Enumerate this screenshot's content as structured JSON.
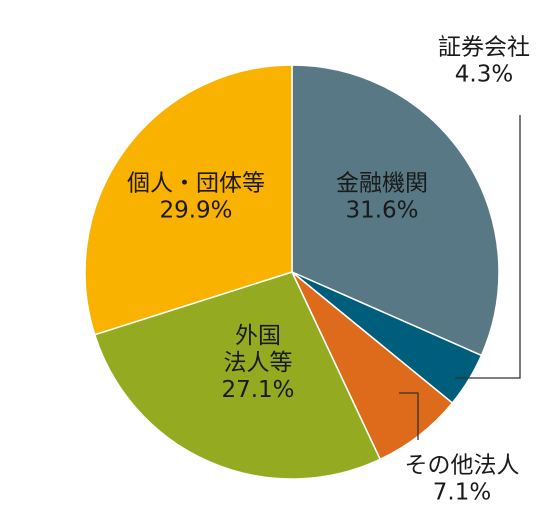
{
  "chart_data": {
    "type": "pie",
    "slices": [
      {
        "name": "金融機関",
        "value": 31.6,
        "value_label": "31.6%",
        "label_lines": [
          "金融機関"
        ],
        "color": "#577884"
      },
      {
        "name": "証券会社",
        "value": 4.3,
        "value_label": "4.3%",
        "label_lines": [
          "証券会社"
        ],
        "color": "#005e7d"
      },
      {
        "name": "その他法人",
        "value": 7.1,
        "value_label": "7.1%",
        "label_lines": [
          "その他法人"
        ],
        "color": "#dd6b1b"
      },
      {
        "name": "外国法人等",
        "value": 27.1,
        "value_label": "27.1%",
        "label_lines": [
          "外国",
          "法人等"
        ],
        "color": "#94ab21"
      },
      {
        "name": "個人・団体等",
        "value": 29.9,
        "value_label": "29.9%",
        "label_lines": [
          "個人・団体等"
        ],
        "color": "#f9b200"
      }
    ]
  }
}
